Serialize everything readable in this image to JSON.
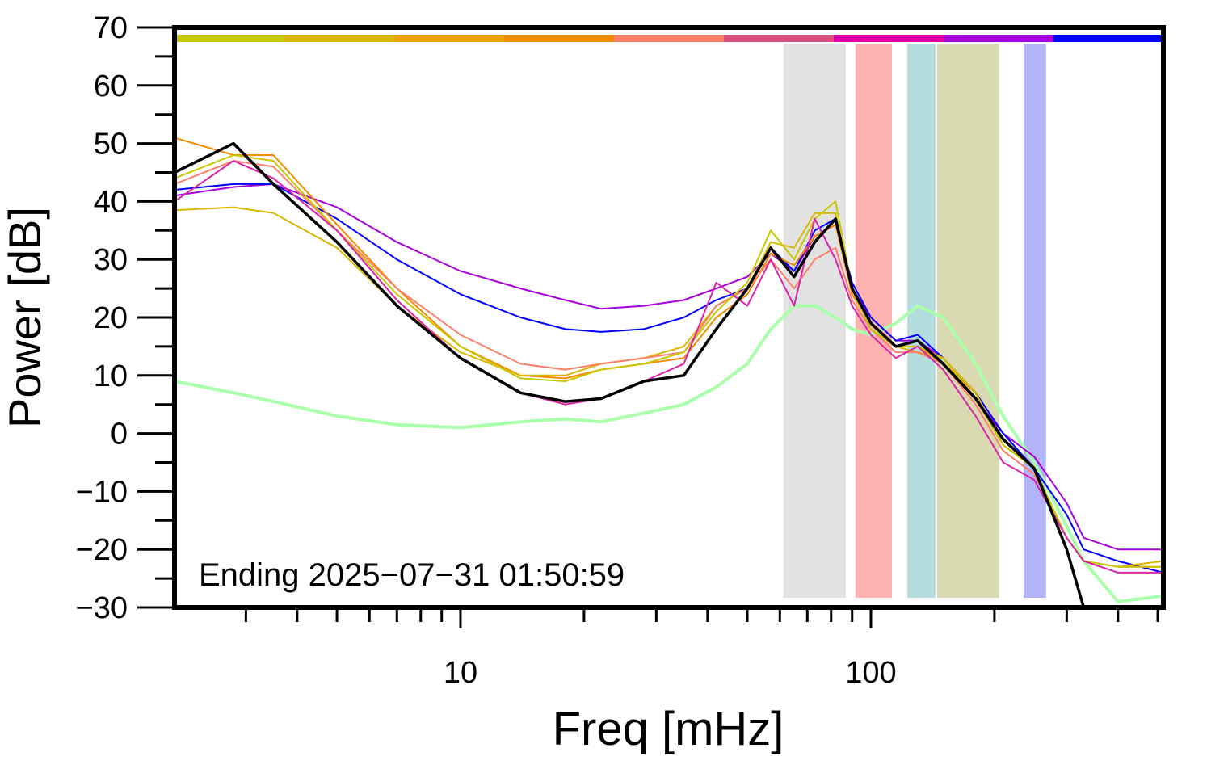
{
  "chart_data": {
    "type": "line",
    "xlabel": "Freq [mHz]",
    "ylabel": "Power [dB]",
    "annotation": "Ending 2025−07−31 01:50:59",
    "xscale": "log",
    "xlim": [
      2.01,
      516
    ],
    "xticks": [
      10,
      100
    ],
    "xminorticks": [
      3,
      4,
      5,
      6,
      7,
      8,
      9,
      20,
      30,
      40,
      50,
      60,
      70,
      80,
      90,
      200,
      300,
      400,
      500
    ],
    "ylim": [
      -30,
      70
    ],
    "yticks": [
      {
        "value": -30,
        "label": "−30"
      },
      {
        "value": -20,
        "label": "−20"
      },
      {
        "value": -10,
        "label": "−10"
      },
      0,
      10,
      20,
      30,
      40,
      50,
      60,
      70
    ],
    "yminorticks": [
      -25,
      -15,
      -5,
      5,
      15,
      25,
      35,
      45,
      55,
      65
    ],
    "colorbar": [
      "#c8c800",
      "#dab800",
      "#eea200",
      "#f58a00",
      "#ff7f6a",
      "#dc5080",
      "#dd00aa",
      "#aa00dd",
      "#0000ff"
    ],
    "bands": [
      {
        "range": [
          61.2,
          86.9
        ],
        "color": "#e2e2e2"
      },
      {
        "range": [
          91.7,
          112.5
        ],
        "color": "#ffb3b0"
      },
      {
        "range": [
          122.7,
          143.6
        ],
        "color": "#b3dcde"
      },
      {
        "range": [
          144.9,
          205.4
        ],
        "color": "#dadab2"
      },
      {
        "range": [
          235.5,
          267.1
        ],
        "color": "#b3b3f8"
      }
    ],
    "x": [
      2.01,
      2.8,
      3.5,
      5,
      7,
      10,
      14,
      18,
      22,
      28,
      35,
      42,
      50,
      57,
      65,
      73,
      82,
      90,
      100,
      115,
      130,
      150,
      180,
      210,
      250,
      300,
      330,
      400,
      516
    ],
    "series": [
      {
        "color": "#aaffaa",
        "width": 4,
        "values": [
          9,
          7,
          5.5,
          3,
          1.5,
          1,
          2,
          2.5,
          2,
          3.5,
          5,
          8,
          12,
          18,
          22,
          22,
          20,
          18,
          17,
          19,
          22,
          20,
          12,
          3,
          -5,
          -16,
          -22,
          -29,
          -28
        ]
      },
      {
        "color": "#aa00dd",
        "width": 2,
        "values": [
          41,
          42.5,
          43,
          39,
          33,
          28,
          25,
          23,
          21.5,
          22,
          23,
          25,
          27,
          31,
          28,
          34,
          36,
          25,
          20,
          16,
          16,
          13,
          6,
          0,
          -4,
          -12,
          -18,
          -20,
          -20
        ]
      },
      {
        "color": "#0000ff",
        "width": 2,
        "values": [
          42,
          43,
          43,
          37,
          30,
          24,
          20,
          18,
          17.5,
          18,
          20,
          23,
          25,
          32,
          28,
          35,
          37,
          26,
          20,
          16,
          17,
          13,
          7,
          0,
          -6,
          -14,
          -20,
          -22,
          -24
        ]
      },
      {
        "color": "#f58a00",
        "width": 2,
        "values": [
          51,
          48,
          48,
          36,
          25,
          15,
          10,
          9.5,
          11,
          12,
          13,
          20,
          24,
          31,
          29,
          34,
          36,
          24,
          19,
          15,
          15,
          12,
          7,
          -2,
          -6,
          -18,
          -22,
          -23,
          -23
        ]
      },
      {
        "color": "#dab800",
        "width": 2,
        "values": [
          38.5,
          39,
          38,
          32,
          22,
          14,
          10,
          10,
          12,
          13,
          15,
          22,
          25,
          33,
          32,
          38,
          38,
          25,
          18,
          15,
          14,
          13,
          7,
          -2,
          -6,
          -18,
          -22,
          -23,
          -22
        ]
      },
      {
        "color": "#ff7f6a",
        "width": 2,
        "values": [
          43,
          47,
          46,
          35,
          25,
          17,
          12,
          11,
          12,
          13,
          14,
          22,
          25,
          30,
          25,
          30,
          32,
          23,
          18,
          14,
          14,
          12,
          5,
          -3,
          -7,
          -18,
          -22,
          -23,
          -23
        ]
      },
      {
        "color": "#c8c800",
        "width": 2,
        "values": [
          44,
          48,
          47,
          35,
          24,
          15,
          9.5,
          9,
          11,
          12,
          14,
          21,
          26,
          35,
          30,
          37,
          40,
          25,
          18,
          15,
          15,
          13,
          6,
          -2,
          -6,
          -18,
          -22,
          -23,
          -23
        ]
      },
      {
        "color": "#dd22aa",
        "width": 2,
        "values": [
          40,
          47,
          44,
          35,
          23,
          13,
          7,
          5,
          6,
          9,
          12,
          26,
          22,
          30,
          22,
          37,
          30,
          22,
          17,
          13,
          15,
          11,
          3,
          -5,
          -8,
          -18,
          -22,
          -24,
          -24
        ]
      },
      {
        "color": "#000000",
        "width": 3.5,
        "values": [
          45,
          50,
          43,
          33,
          22,
          13,
          7,
          5.5,
          6,
          9,
          10,
          18,
          25,
          32,
          27,
          33,
          37,
          25,
          19,
          15,
          16,
          12,
          6,
          -1,
          -6,
          -20,
          -30,
          null,
          null
        ]
      }
    ]
  }
}
